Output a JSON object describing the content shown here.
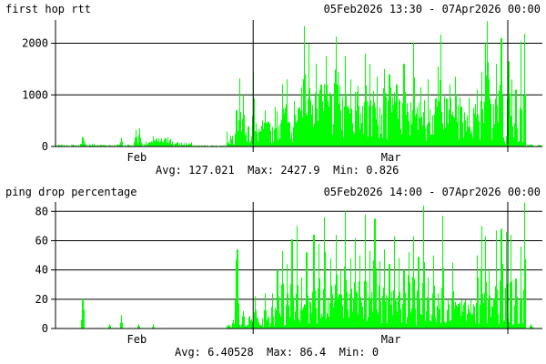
{
  "chart_data": [
    {
      "type": "bar",
      "title": "first hop rtt",
      "range": "05Feb2026 13:30 - 07Apr2026 00:00",
      "x_ticks": [
        {
          "label": "Feb",
          "x": 0.167
        },
        {
          "label": "Mar",
          "x": 0.689
        }
      ],
      "time_markers": [
        0.406,
        0.929
      ],
      "y_ticks": [
        0,
        1000,
        2000
      ],
      "ylim": [
        0,
        2450
      ],
      "grid": true,
      "color": "#00ff00",
      "stats": {
        "avg_label": "Avg:",
        "avg": "127.021",
        "max_label": "Max:",
        "max": "2427.9",
        "min_label": "Min:",
        "min": "0.826"
      },
      "bands": [
        {
          "from": 0.0,
          "to": 0.05,
          "lvl": 25
        },
        {
          "from": 0.05,
          "to": 0.08,
          "lvl": 40
        },
        {
          "from": 0.08,
          "to": 0.16,
          "lvl": 30
        },
        {
          "from": 0.16,
          "to": 0.2,
          "lvl": 70
        },
        {
          "from": 0.2,
          "to": 0.24,
          "lvl": 120
        },
        {
          "from": 0.24,
          "to": 0.28,
          "lvl": 60
        },
        {
          "from": 0.28,
          "to": 0.35,
          "lvl": 20
        },
        {
          "from": 0.35,
          "to": 0.39,
          "lvl": 200
        },
        {
          "from": 0.39,
          "to": 0.45,
          "lvl": 350
        },
        {
          "from": 0.45,
          "to": 0.52,
          "lvl": 550
        },
        {
          "from": 0.52,
          "to": 0.6,
          "lvl": 850
        },
        {
          "from": 0.6,
          "to": 0.7,
          "lvl": 850
        },
        {
          "from": 0.7,
          "to": 0.78,
          "lvl": 650
        },
        {
          "from": 0.78,
          "to": 0.86,
          "lvl": 700
        },
        {
          "from": 0.86,
          "to": 0.92,
          "lvl": 800
        },
        {
          "from": 0.92,
          "to": 0.94,
          "lvl": 300
        },
        {
          "from": 0.94,
          "to": 0.96,
          "lvl": 150
        },
        {
          "from": 0.96,
          "to": 1.0,
          "lvl": 25
        }
      ],
      "spikes": [
        {
          "x": 0.055,
          "v": 180
        },
        {
          "x": 0.135,
          "v": 170
        },
        {
          "x": 0.165,
          "v": 320
        },
        {
          "x": 0.172,
          "v": 350
        },
        {
          "x": 0.2,
          "v": 200
        },
        {
          "x": 0.23,
          "v": 180
        },
        {
          "x": 0.371,
          "v": 700
        },
        {
          "x": 0.377,
          "v": 1320
        },
        {
          "x": 0.385,
          "v": 1000
        },
        {
          "x": 0.405,
          "v": 1450
        },
        {
          "x": 0.43,
          "v": 700
        },
        {
          "x": 0.45,
          "v": 560
        },
        {
          "x": 0.465,
          "v": 1200
        },
        {
          "x": 0.475,
          "v": 1300
        },
        {
          "x": 0.49,
          "v": 880
        },
        {
          "x": 0.505,
          "v": 1150
        },
        {
          "x": 0.51,
          "v": 2330
        },
        {
          "x": 0.52,
          "v": 1990
        },
        {
          "x": 0.535,
          "v": 1600
        },
        {
          "x": 0.545,
          "v": 1200
        },
        {
          "x": 0.555,
          "v": 1750
        },
        {
          "x": 0.565,
          "v": 1000
        },
        {
          "x": 0.575,
          "v": 2130
        },
        {
          "x": 0.58,
          "v": 1450
        },
        {
          "x": 0.595,
          "v": 1750
        },
        {
          "x": 0.605,
          "v": 1300
        },
        {
          "x": 0.62,
          "v": 1150
        },
        {
          "x": 0.635,
          "v": 1800
        },
        {
          "x": 0.645,
          "v": 1600
        },
        {
          "x": 0.66,
          "v": 1350
        },
        {
          "x": 0.675,
          "v": 1500
        },
        {
          "x": 0.685,
          "v": 1400
        },
        {
          "x": 0.7,
          "v": 1200
        },
        {
          "x": 0.715,
          "v": 1600
        },
        {
          "x": 0.735,
          "v": 2020
        },
        {
          "x": 0.75,
          "v": 1150
        },
        {
          "x": 0.765,
          "v": 1300
        },
        {
          "x": 0.785,
          "v": 1550
        },
        {
          "x": 0.79,
          "v": 2170
        },
        {
          "x": 0.81,
          "v": 1200
        },
        {
          "x": 0.82,
          "v": 1350
        },
        {
          "x": 0.845,
          "v": 600
        },
        {
          "x": 0.865,
          "v": 1100
        },
        {
          "x": 0.875,
          "v": 1450
        },
        {
          "x": 0.882,
          "v": 2000
        },
        {
          "x": 0.886,
          "v": 2430
        },
        {
          "x": 0.89,
          "v": 1300
        },
        {
          "x": 0.905,
          "v": 1600
        },
        {
          "x": 0.915,
          "v": 2100
        },
        {
          "x": 0.93,
          "v": 1650
        },
        {
          "x": 0.937,
          "v": 1300
        },
        {
          "x": 0.945,
          "v": 1100
        },
        {
          "x": 0.955,
          "v": 2030
        },
        {
          "x": 0.962,
          "v": 2180
        },
        {
          "x": 0.975,
          "v": 50
        }
      ]
    },
    {
      "type": "bar",
      "title": "ping drop percentage",
      "range": "05Feb2026 14:00 - 07Apr2026 00:00",
      "x_ticks": [
        {
          "label": "Feb",
          "x": 0.167
        },
        {
          "label": "Mar",
          "x": 0.689
        }
      ],
      "time_markers": [
        0.406,
        0.929
      ],
      "y_ticks": [
        0,
        20,
        40,
        60,
        80
      ],
      "ylim": [
        0,
        86.4
      ],
      "grid": true,
      "color": "#00ff00",
      "stats": {
        "avg_label": "Avg:",
        "avg": "6.40528",
        "max_label": "Max:",
        "max": "86.4",
        "min_label": "Min:",
        "min": "0"
      },
      "bands": [
        {
          "from": 0.0,
          "to": 0.35,
          "lvl": 0.3
        },
        {
          "from": 0.35,
          "to": 0.39,
          "lvl": 2
        },
        {
          "from": 0.39,
          "to": 0.45,
          "lvl": 6
        },
        {
          "from": 0.45,
          "to": 0.52,
          "lvl": 12
        },
        {
          "from": 0.52,
          "to": 0.6,
          "lvl": 18
        },
        {
          "from": 0.6,
          "to": 0.7,
          "lvl": 18
        },
        {
          "from": 0.7,
          "to": 0.78,
          "lvl": 10
        },
        {
          "from": 0.78,
          "to": 0.86,
          "lvl": 14
        },
        {
          "from": 0.86,
          "to": 0.92,
          "lvl": 16
        },
        {
          "from": 0.92,
          "to": 0.94,
          "lvl": 6
        },
        {
          "from": 0.94,
          "to": 0.96,
          "lvl": 3
        },
        {
          "from": 0.96,
          "to": 1.0,
          "lvl": 0.5
        }
      ],
      "spikes": [
        {
          "x": 0.055,
          "v": 20
        },
        {
          "x": 0.11,
          "v": 3
        },
        {
          "x": 0.135,
          "v": 9
        },
        {
          "x": 0.17,
          "v": 3
        },
        {
          "x": 0.2,
          "v": 3
        },
        {
          "x": 0.365,
          "v": 6
        },
        {
          "x": 0.371,
          "v": 47
        },
        {
          "x": 0.373,
          "v": 54
        },
        {
          "x": 0.385,
          "v": 12
        },
        {
          "x": 0.41,
          "v": 22
        },
        {
          "x": 0.43,
          "v": 24
        },
        {
          "x": 0.445,
          "v": 24
        },
        {
          "x": 0.455,
          "v": 40
        },
        {
          "x": 0.465,
          "v": 53
        },
        {
          "x": 0.475,
          "v": 44
        },
        {
          "x": 0.485,
          "v": 61
        },
        {
          "x": 0.495,
          "v": 70
        },
        {
          "x": 0.505,
          "v": 35
        },
        {
          "x": 0.515,
          "v": 52
        },
        {
          "x": 0.53,
          "v": 64
        },
        {
          "x": 0.54,
          "v": 58
        },
        {
          "x": 0.552,
          "v": 76
        },
        {
          "x": 0.565,
          "v": 48
        },
        {
          "x": 0.575,
          "v": 64
        },
        {
          "x": 0.585,
          "v": 40
        },
        {
          "x": 0.595,
          "v": 80
        },
        {
          "x": 0.605,
          "v": 48
        },
        {
          "x": 0.615,
          "v": 62
        },
        {
          "x": 0.625,
          "v": 50
        },
        {
          "x": 0.635,
          "v": 78
        },
        {
          "x": 0.645,
          "v": 53
        },
        {
          "x": 0.655,
          "v": 75
        },
        {
          "x": 0.665,
          "v": 46
        },
        {
          "x": 0.675,
          "v": 54
        },
        {
          "x": 0.685,
          "v": 44
        },
        {
          "x": 0.695,
          "v": 63
        },
        {
          "x": 0.705,
          "v": 48
        },
        {
          "x": 0.715,
          "v": 40
        },
        {
          "x": 0.725,
          "v": 52
        },
        {
          "x": 0.735,
          "v": 63
        },
        {
          "x": 0.745,
          "v": 49
        },
        {
          "x": 0.755,
          "v": 84
        },
        {
          "x": 0.765,
          "v": 35
        },
        {
          "x": 0.775,
          "v": 50
        },
        {
          "x": 0.785,
          "v": 24
        },
        {
          "x": 0.795,
          "v": 77
        },
        {
          "x": 0.805,
          "v": 20
        },
        {
          "x": 0.815,
          "v": 45
        },
        {
          "x": 0.825,
          "v": 15
        },
        {
          "x": 0.845,
          "v": 10
        },
        {
          "x": 0.865,
          "v": 50
        },
        {
          "x": 0.875,
          "v": 70
        },
        {
          "x": 0.882,
          "v": 63
        },
        {
          "x": 0.89,
          "v": 40
        },
        {
          "x": 0.905,
          "v": 67
        },
        {
          "x": 0.915,
          "v": 68
        },
        {
          "x": 0.925,
          "v": 66
        },
        {
          "x": 0.935,
          "v": 64
        },
        {
          "x": 0.945,
          "v": 34
        },
        {
          "x": 0.955,
          "v": 56
        },
        {
          "x": 0.962,
          "v": 86
        },
        {
          "x": 0.975,
          "v": 3
        }
      ]
    }
  ]
}
